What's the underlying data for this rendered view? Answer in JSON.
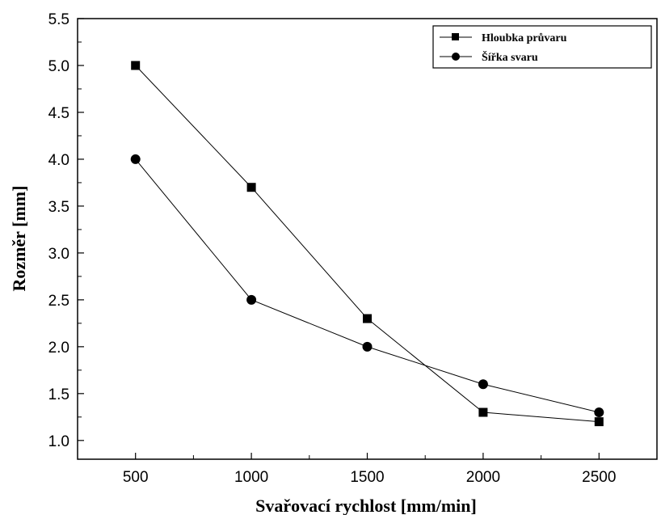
{
  "chart_data": {
    "type": "line",
    "xlabel": "Svařovací rychlost [mm/min]",
    "ylabel": "Rozměr [mm]",
    "x": [
      500,
      1000,
      1500,
      2000,
      2500
    ],
    "xlim": [
      250,
      2750
    ],
    "ylim": [
      0.8,
      5.5
    ],
    "xticks": [
      "500",
      "1000",
      "1500",
      "2000",
      "2500"
    ],
    "yticks": [
      "1.0",
      "1.5",
      "2.0",
      "2.5",
      "3.0",
      "3.5",
      "4.0",
      "4.5",
      "5.0",
      "5.5"
    ],
    "grid": false,
    "legend_position": "top-right",
    "series": [
      {
        "name": "Hloubka průvaru",
        "marker": "square",
        "values": [
          5.0,
          3.7,
          2.3,
          1.3,
          1.2
        ]
      },
      {
        "name": "Šířka svaru",
        "marker": "circle",
        "values": [
          4.0,
          2.5,
          2.0,
          1.6,
          1.3
        ]
      }
    ]
  }
}
